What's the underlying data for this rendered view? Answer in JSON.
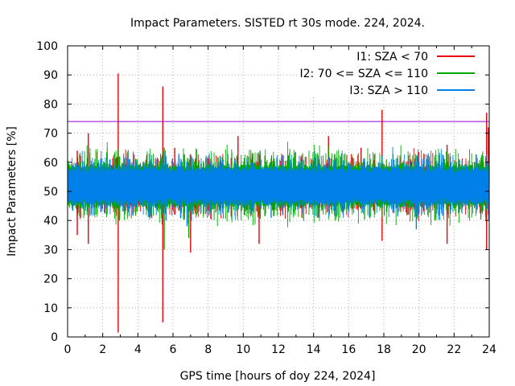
{
  "chart_data": {
    "type": "line",
    "title": "Impact Parameters. SISTED rt 30s mode. 224, 2024.",
    "xlabel": "GPS time [hours of doy 224, 2024]",
    "ylabel": "Impact Parameters [%]",
    "xlim": [
      0,
      24
    ],
    "ylim": [
      0,
      100
    ],
    "xticks": [
      "0",
      "2",
      "4",
      "6",
      "8",
      "10",
      "12",
      "14",
      "16",
      "18",
      "20",
      "22",
      "24"
    ],
    "yticks": [
      "0",
      "10",
      "20",
      "30",
      "40",
      "50",
      "60",
      "70",
      "80",
      "90",
      "100"
    ],
    "grid": true,
    "legend_position": "top-right",
    "reference_line": {
      "y": 74,
      "color": "#9400d3"
    },
    "series": [
      {
        "name": "I1: SZA < 70",
        "color": "#e8000b",
        "baseline": 52,
        "band": [
          46,
          58
        ],
        "spikes": [
          {
            "x": 2.88,
            "low": 1.5,
            "high": 90.5
          },
          {
            "x": 5.42,
            "low": 5,
            "high": 86
          },
          {
            "x": 17.9,
            "low": 33,
            "high": 78
          },
          {
            "x": 23.85,
            "low": 30,
            "high": 77
          },
          {
            "x": 1.18,
            "low": 32,
            "high": 70
          },
          {
            "x": 0.55,
            "low": 35,
            "high": 64
          },
          {
            "x": 7.0,
            "low": 29,
            "high": 61
          },
          {
            "x": 9.7,
            "low": 45,
            "high": 69
          },
          {
            "x": 10.9,
            "low": 32,
            "high": 60
          },
          {
            "x": 14.85,
            "low": 43,
            "high": 69
          },
          {
            "x": 21.6,
            "low": 32,
            "high": 66
          },
          {
            "x": 6.1,
            "low": 42,
            "high": 65
          },
          {
            "x": 16.7,
            "low": 44,
            "high": 65
          },
          {
            "x": 23.95,
            "low": 42,
            "high": 72
          }
        ]
      },
      {
        "name": "I2: 70 <= SZA <= 110",
        "color": "#00aa00",
        "baseline": 52,
        "band": [
          45,
          59
        ],
        "spikes": [
          {
            "x": 5.5,
            "low": 30,
            "high": 65
          },
          {
            "x": 6.9,
            "low": 34,
            "high": 60
          },
          {
            "x": 15.6,
            "low": 43,
            "high": 63
          },
          {
            "x": 2.95,
            "low": 40,
            "high": 62
          },
          {
            "x": 3.95,
            "low": 43,
            "high": 61
          }
        ]
      },
      {
        "name": "I3: SZA > 110",
        "color": "#0080e8",
        "baseline": 52,
        "band": [
          46,
          58
        ],
        "spikes": [
          {
            "x": 6.8,
            "low": 38,
            "high": 60
          },
          {
            "x": 19.85,
            "low": 37,
            "high": 59
          },
          {
            "x": 5.6,
            "low": 40,
            "high": 60
          }
        ]
      }
    ]
  }
}
